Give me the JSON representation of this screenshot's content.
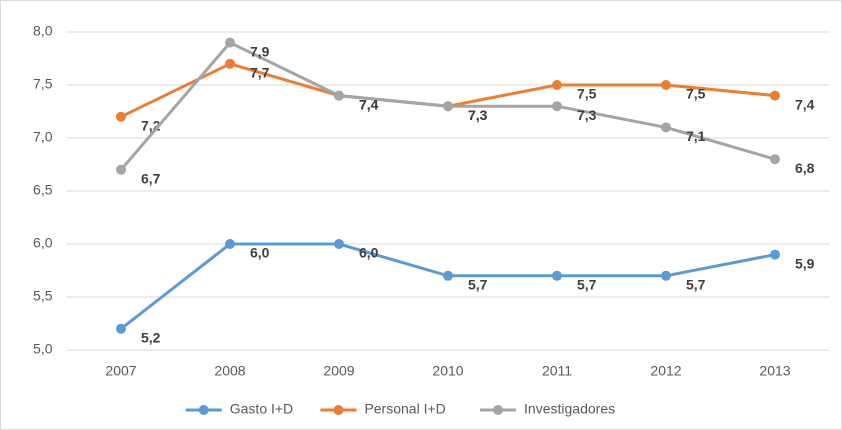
{
  "chart_data": {
    "type": "line",
    "categories": [
      "2007",
      "2008",
      "2009",
      "2010",
      "2011",
      "2012",
      "2013"
    ],
    "series": [
      {
        "name": "Gasto I+D",
        "color": "#5b9bd5",
        "values": [
          5.2,
          6.0,
          6.0,
          5.7,
          5.7,
          5.7,
          5.9
        ],
        "value_labels": [
          "5,2",
          "6,0",
          "6,0",
          "5,7",
          "5,7",
          "5,7",
          "5,9"
        ]
      },
      {
        "name": "Personal I+D",
        "color": "#ed7d31",
        "values": [
          7.2,
          7.7,
          7.4,
          7.3,
          7.5,
          7.5,
          7.4
        ],
        "value_labels": [
          "7,2",
          "7,7",
          "7,4",
          "7,3",
          "7,5",
          "7,5",
          "7,4"
        ]
      },
      {
        "name": "Investigadores",
        "color": "#a5a5a5",
        "values": [
          6.7,
          7.9,
          7.4,
          7.3,
          7.3,
          7.1,
          6.8
        ],
        "value_labels": [
          "6,7",
          "7,9",
          "7,4",
          "7,3",
          "7,3",
          "7,1",
          "6,8"
        ]
      }
    ],
    "ylim": [
      5,
      8
    ],
    "yticks": [
      {
        "value": 5,
        "label": "5,0"
      },
      {
        "value": 5.5,
        "label": "5,5"
      },
      {
        "value": 6,
        "label": "6,0"
      },
      {
        "value": 6.5,
        "label": "6,5"
      },
      {
        "value": 7,
        "label": "7,0"
      },
      {
        "value": 7.5,
        "label": "7,5"
      },
      {
        "value": 8,
        "label": "8,0"
      }
    ],
    "grid": true,
    "legend": "bottom"
  }
}
